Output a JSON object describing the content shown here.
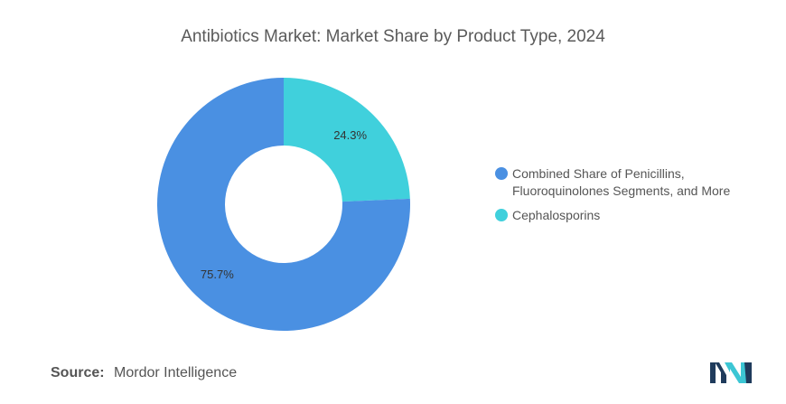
{
  "chart_data": {
    "type": "pie",
    "style": "donut",
    "title": "Antibiotics Market: Market Share by Product Type, 2024",
    "slices": [
      {
        "label": "Cephalosporins",
        "legend_label": "Cephalosporins",
        "value": 24.3,
        "value_label": "24.3%",
        "color": "#40d0dc"
      },
      {
        "label": "Combined Share of Penicillins, Fluoroquinolones Segments, and More",
        "legend_label": "Combined Share of Penicillins,\nFluoroquinolones Segments, and More",
        "value": 75.7,
        "value_label": "75.7%",
        "color": "#4a90e2"
      }
    ],
    "legend_position": "right"
  },
  "footer": {
    "source_label": "Source:",
    "source_value": "Mordor Intelligence"
  },
  "logo": {
    "icon": "mordor-intelligence-logo",
    "colors": [
      "#1f3b5c",
      "#3cc6d4"
    ]
  }
}
